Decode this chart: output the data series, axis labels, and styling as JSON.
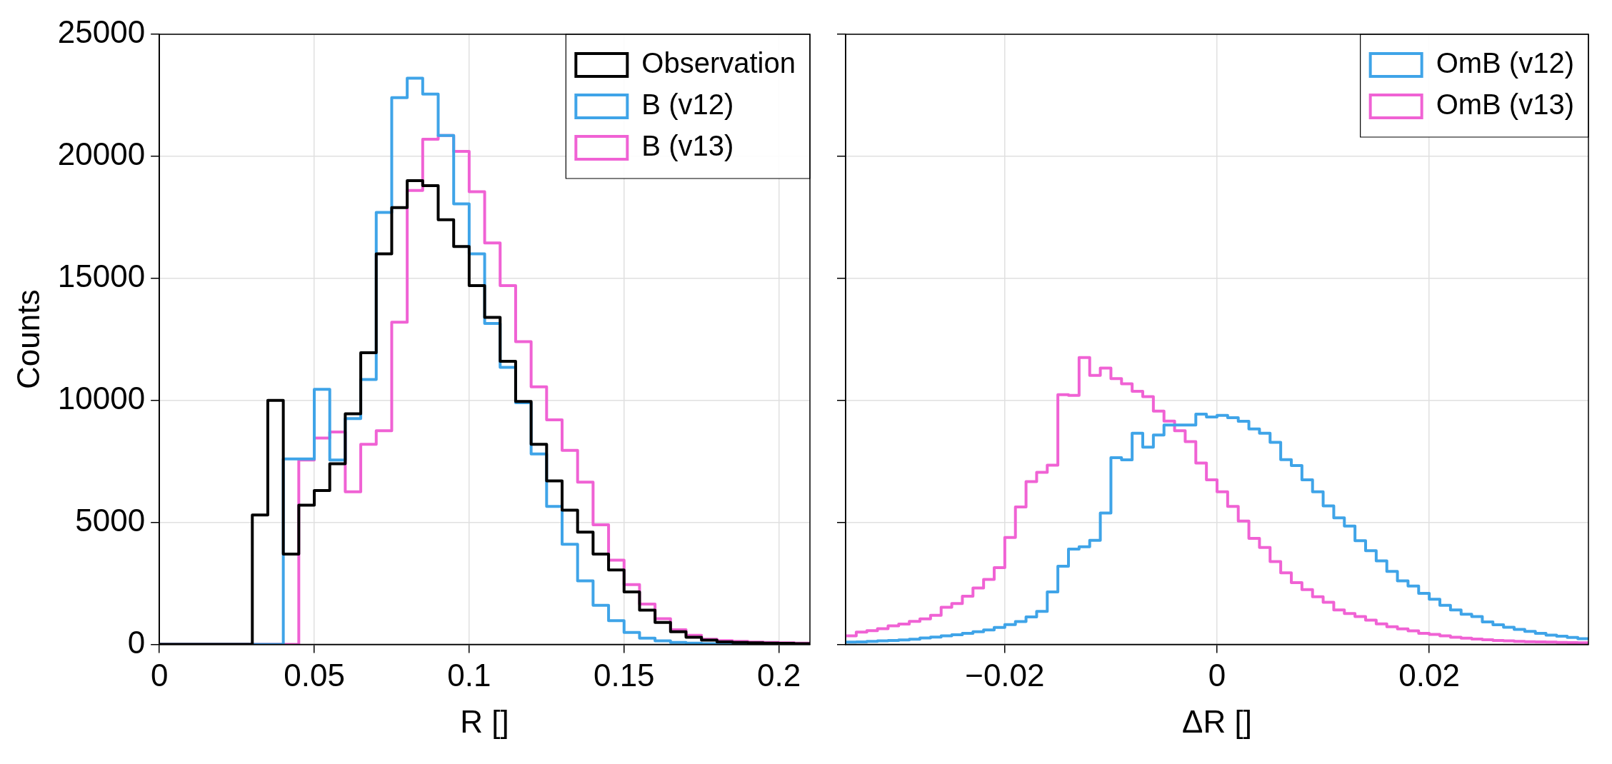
{
  "chart_data": [
    {
      "type": "histogram",
      "xlabel": "R []",
      "ylabel": "Counts",
      "bins": [
        0,
        0.005,
        0.01,
        0.015,
        0.02,
        0.025,
        0.03,
        0.035,
        0.04,
        0.045,
        0.05,
        0.055,
        0.06,
        0.065,
        0.07,
        0.075,
        0.08,
        0.085,
        0.09,
        0.095,
        0.1,
        0.105,
        0.11,
        0.115,
        0.12,
        0.125,
        0.13,
        0.135,
        0.14,
        0.145,
        0.15,
        0.155,
        0.16,
        0.165,
        0.17,
        0.175,
        0.18,
        0.185,
        0.19,
        0.195,
        0.2,
        0.205,
        0.21
      ],
      "series": [
        {
          "name": "Observation",
          "color": "#000000",
          "values": [
            0,
            0,
            0,
            0,
            0,
            0,
            5300,
            10000,
            3700,
            5700,
            6300,
            7400,
            9450,
            11950,
            16000,
            17900,
            19000,
            18800,
            17400,
            16300,
            14700,
            13400,
            11600,
            9950,
            8200,
            6700,
            5500,
            4600,
            3700,
            3050,
            2150,
            1400,
            900,
            520,
            290,
            170,
            100,
            80,
            60,
            50,
            40,
            30
          ]
        },
        {
          "name": "B (v12)",
          "color": "#3fa4e8",
          "values": [
            0,
            0,
            0,
            0,
            0,
            0,
            0,
            0,
            7600,
            7600,
            10450,
            7550,
            9250,
            10850,
            17700,
            22400,
            23200,
            22550,
            20850,
            18050,
            16000,
            13150,
            11350,
            9900,
            7800,
            5650,
            4100,
            2600,
            1600,
            970,
            490,
            250,
            140,
            80,
            50,
            30,
            20,
            10,
            10,
            10,
            0,
            0
          ]
        },
        {
          "name": "B (v13)",
          "color": "#f062d4",
          "values": [
            0,
            0,
            0,
            0,
            0,
            0,
            0,
            0,
            0,
            7550,
            8450,
            8700,
            6250,
            8200,
            8750,
            13200,
            18600,
            20700,
            20850,
            20200,
            18550,
            16450,
            14700,
            12400,
            10550,
            9200,
            7950,
            6650,
            4900,
            3450,
            2450,
            1650,
            1050,
            600,
            370,
            210,
            150,
            120,
            90,
            80,
            60,
            50
          ]
        }
      ],
      "xlim": [
        0,
        0.21
      ],
      "xticks": [
        0,
        0.05,
        0.1,
        0.15,
        0.2
      ],
      "ylim": [
        0,
        25000
      ],
      "yticks": [
        0,
        5000,
        10000,
        15000,
        20000,
        25000
      ],
      "grid": true,
      "legend": "top right"
    },
    {
      "type": "histogram",
      "xlabel": "ΔR []",
      "bins": [
        -0.035,
        -0.034,
        -0.033,
        -0.032,
        -0.031,
        -0.03,
        -0.029,
        -0.028,
        -0.027,
        -0.026,
        -0.025,
        -0.024,
        -0.023,
        -0.022,
        -0.021,
        -0.02,
        -0.019,
        -0.018,
        -0.017,
        -0.016,
        -0.015,
        -0.014,
        -0.013,
        -0.012,
        -0.011,
        -0.01,
        -0.009,
        -0.008,
        -0.007,
        -0.006,
        -0.005,
        -0.004,
        -0.003,
        -0.002,
        -0.001,
        0,
        0.001,
        0.002,
        0.003,
        0.004,
        0.005,
        0.006,
        0.007,
        0.008,
        0.009,
        0.01,
        0.011,
        0.012,
        0.013,
        0.014,
        0.015,
        0.016,
        0.017,
        0.018,
        0.019,
        0.02,
        0.021,
        0.022,
        0.023,
        0.024,
        0.025,
        0.026,
        0.027,
        0.028,
        0.029,
        0.03,
        0.031,
        0.032,
        0.033,
        0.034,
        0.035
      ],
      "series": [
        {
          "name": "OmB (v12)",
          "color": "#3fa4e8",
          "values": [
            90,
            100,
            120,
            140,
            160,
            180,
            210,
            260,
            300,
            350,
            390,
            450,
            520,
            590,
            690,
            810,
            930,
            1120,
            1350,
            2150,
            3200,
            3900,
            4000,
            4260,
            5380,
            7650,
            7560,
            8650,
            8080,
            8580,
            8990,
            8990,
            8990,
            9430,
            9320,
            9380,
            9290,
            9140,
            8830,
            8650,
            8280,
            7570,
            7330,
            6740,
            6250,
            5670,
            5180,
            4850,
            4250,
            3840,
            3420,
            2990,
            2600,
            2390,
            2090,
            1850,
            1600,
            1410,
            1230,
            1140,
            920,
            800,
            700,
            610,
            530,
            450,
            380,
            330,
            280,
            230
          ]
        },
        {
          "name": "OmB (v13)",
          "color": "#f062d4",
          "values": [
            350,
            500,
            560,
            640,
            760,
            830,
            940,
            1040,
            1190,
            1520,
            1670,
            1970,
            2310,
            2660,
            3140,
            4380,
            5630,
            6670,
            7050,
            7340,
            10230,
            10200,
            11750,
            11020,
            11320,
            10890,
            10680,
            10370,
            10150,
            9560,
            9150,
            8750,
            8310,
            7430,
            6740,
            6250,
            5650,
            5050,
            4340,
            3970,
            3390,
            2930,
            2530,
            2240,
            1950,
            1720,
            1410,
            1260,
            1140,
            990,
            840,
            720,
            630,
            550,
            450,
            410,
            350,
            290,
            250,
            220,
            190,
            160,
            140,
            120,
            110,
            100,
            90,
            80,
            70,
            60
          ]
        }
      ],
      "xlim": [
        -0.035,
        0.035
      ],
      "xticks": [
        {
          "value": -0.02,
          "label": "−0.02"
        },
        0,
        0.02
      ],
      "ylim": [
        0,
        25000
      ],
      "yticks": [
        0,
        5000,
        10000,
        15000,
        20000,
        25000
      ],
      "grid": true,
      "legend": "top right",
      "tick_labels": "x"
    }
  ]
}
